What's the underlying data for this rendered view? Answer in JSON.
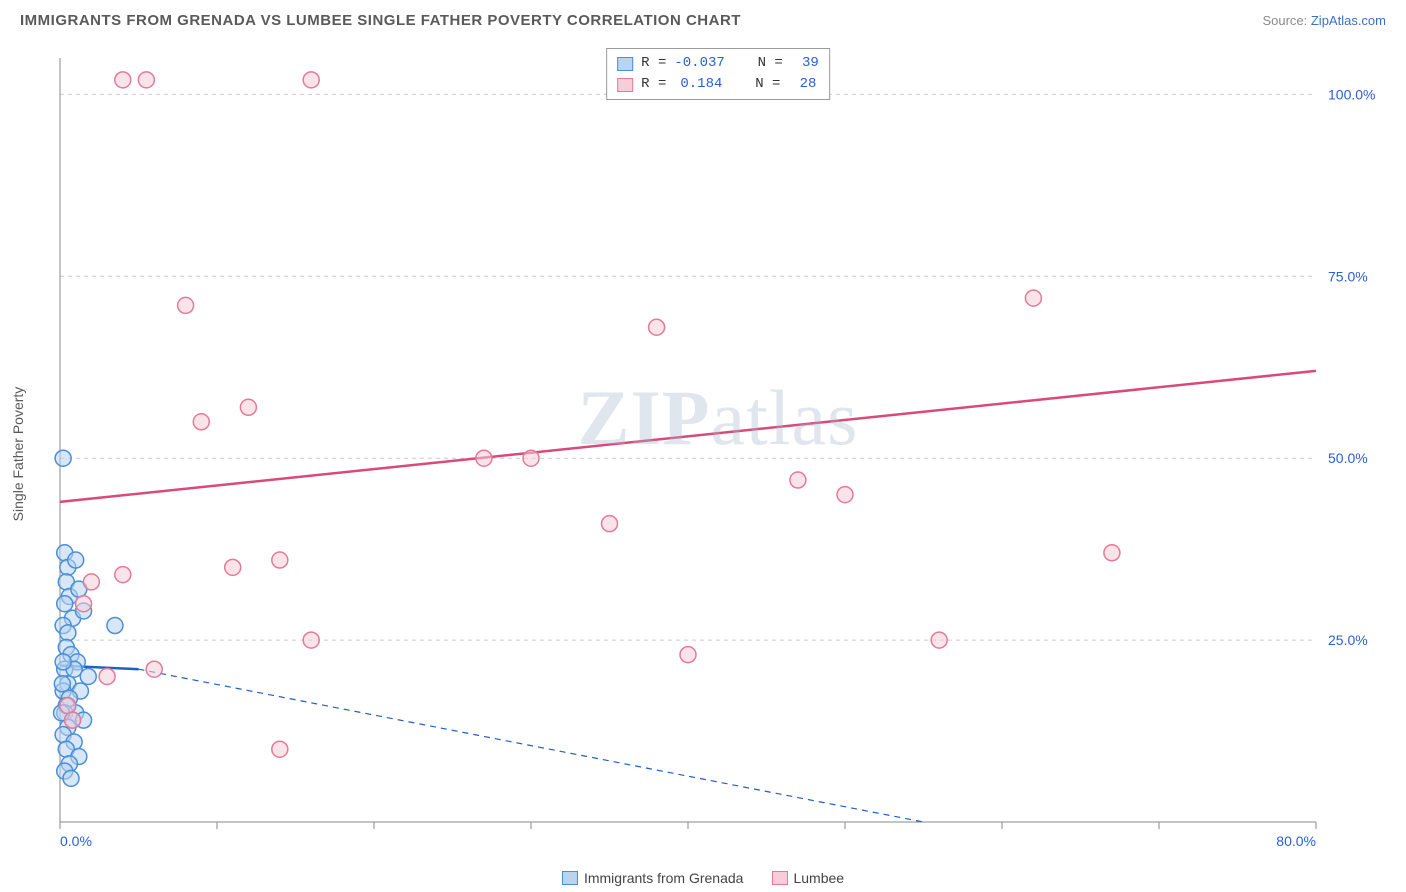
{
  "title": "IMMIGRANTS FROM GRENADA VS LUMBEE SINGLE FATHER POVERTY CORRELATION CHART",
  "source_prefix": "Source: ",
  "source_link": "ZipAtlas.com",
  "y_axis_label": "Single Father Poverty",
  "watermark": {
    "bold": "ZIP",
    "light": "atlas"
  },
  "chart": {
    "type": "scatter-with-regression",
    "xlim": [
      0,
      80
    ],
    "ylim": [
      0,
      105
    ],
    "x_ticks": [
      0,
      10,
      20,
      30,
      40,
      50,
      60,
      70,
      80
    ],
    "x_tick_labels": {
      "0": "0.0%",
      "80": "80.0%"
    },
    "y_ticks": [
      25,
      50,
      75,
      100
    ],
    "y_tick_labels": {
      "25": "25.0%",
      "50": "50.0%",
      "75": "75.0%",
      "100": "100.0%"
    },
    "background_color": "#ffffff",
    "grid_color": "#cccccc",
    "axis_color": "#888888",
    "marker_radius": 8,
    "marker_stroke_width": 1.5,
    "line_width": 2.5,
    "dashed_line_width": 1.2,
    "series": [
      {
        "id": "grenada",
        "label": "Immigrants from Grenada",
        "fill": "#b8d4f0",
        "stroke": "#4a8fd8",
        "line_color": "#1f5fc0",
        "R": "-0.037",
        "N": "39",
        "points": [
          [
            0.2,
            50
          ],
          [
            0.3,
            37
          ],
          [
            0.5,
            35
          ],
          [
            1.0,
            36
          ],
          [
            0.4,
            33
          ],
          [
            0.6,
            31
          ],
          [
            1.2,
            32
          ],
          [
            0.3,
            30
          ],
          [
            0.8,
            28
          ],
          [
            1.5,
            29
          ],
          [
            0.2,
            27
          ],
          [
            0.5,
            26
          ],
          [
            3.5,
            27
          ],
          [
            0.4,
            24
          ],
          [
            0.7,
            23
          ],
          [
            1.1,
            22
          ],
          [
            0.3,
            21
          ],
          [
            0.9,
            21
          ],
          [
            1.8,
            20
          ],
          [
            0.5,
            19
          ],
          [
            0.2,
            18
          ],
          [
            1.3,
            18
          ],
          [
            0.6,
            17
          ],
          [
            0.4,
            16
          ],
          [
            1.0,
            15
          ],
          [
            0.3,
            15
          ],
          [
            0.8,
            14
          ],
          [
            1.5,
            14
          ],
          [
            0.5,
            13
          ],
          [
            0.2,
            12
          ],
          [
            0.9,
            11
          ],
          [
            0.4,
            10
          ],
          [
            1.2,
            9
          ],
          [
            0.6,
            8
          ],
          [
            0.3,
            7
          ],
          [
            0.7,
            6
          ],
          [
            0.1,
            15
          ],
          [
            0.2,
            22
          ],
          [
            0.15,
            19
          ]
        ],
        "reg_solid": {
          "x1": 0,
          "y1": 21.5,
          "x2": 5,
          "y2": 21.0
        },
        "reg_dashed": {
          "x1": 5,
          "y1": 21.0,
          "x2": 55,
          "y2": 0
        }
      },
      {
        "id": "lumbee",
        "label": "Lumbee",
        "fill": "#f6cdd9",
        "stroke": "#e47a9a",
        "line_color": "#d94a78",
        "R": "0.184",
        "N": "28",
        "points": [
          [
            4,
            102
          ],
          [
            5.5,
            102
          ],
          [
            16,
            102
          ],
          [
            41,
            102
          ],
          [
            8,
            71
          ],
          [
            38,
            68
          ],
          [
            62,
            72
          ],
          [
            12,
            57
          ],
          [
            9,
            55
          ],
          [
            47,
            47
          ],
          [
            50,
            45
          ],
          [
            67,
            37
          ],
          [
            27,
            50
          ],
          [
            30,
            50
          ],
          [
            35,
            41
          ],
          [
            11,
            35
          ],
          [
            14,
            36
          ],
          [
            2,
            33
          ],
          [
            4,
            34
          ],
          [
            1.5,
            30
          ],
          [
            16,
            25
          ],
          [
            40,
            23
          ],
          [
            56,
            25
          ],
          [
            3,
            20
          ],
          [
            6,
            21
          ],
          [
            0.5,
            16
          ],
          [
            0.8,
            14
          ],
          [
            14,
            10
          ]
        ],
        "reg_solid": {
          "x1": 0,
          "y1": 44,
          "x2": 80,
          "y2": 62
        }
      }
    ]
  },
  "legend_stats": {
    "R_label": "R =",
    "N_label": "N ="
  }
}
